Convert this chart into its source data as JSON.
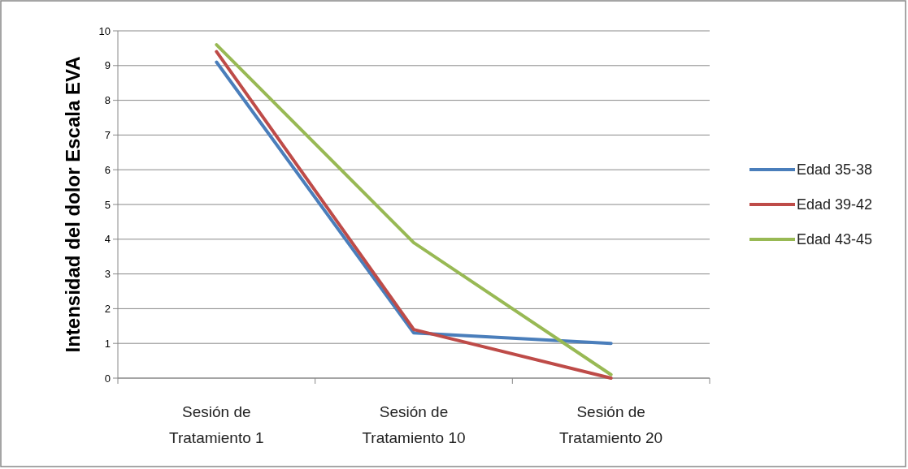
{
  "chart_data": {
    "type": "line",
    "ylabel": "Intensidad del dolor Escala EVA",
    "categories": [
      "Sesión de Tratamiento 1",
      "Sesión de Tratamiento 10",
      "Sesión de Tratamiento 20"
    ],
    "series": [
      {
        "name": "Edad 35-38",
        "color": "#4a7ebb",
        "values": [
          9.1,
          1.3,
          1.0
        ]
      },
      {
        "name": "Edad 39-42",
        "color": "#be4b48",
        "values": [
          9.4,
          1.4,
          0
        ]
      },
      {
        "name": "Edad 43-45",
        "color": "#98b954",
        "values": [
          9.6,
          3.9,
          0.1
        ]
      }
    ],
    "ylim": [
      0,
      10
    ],
    "yticks": [
      0,
      1,
      2,
      3,
      4,
      5,
      6,
      7,
      8,
      9,
      10
    ],
    "grid": "y",
    "legend": "right",
    "marker": "none",
    "line_style": "solid"
  }
}
